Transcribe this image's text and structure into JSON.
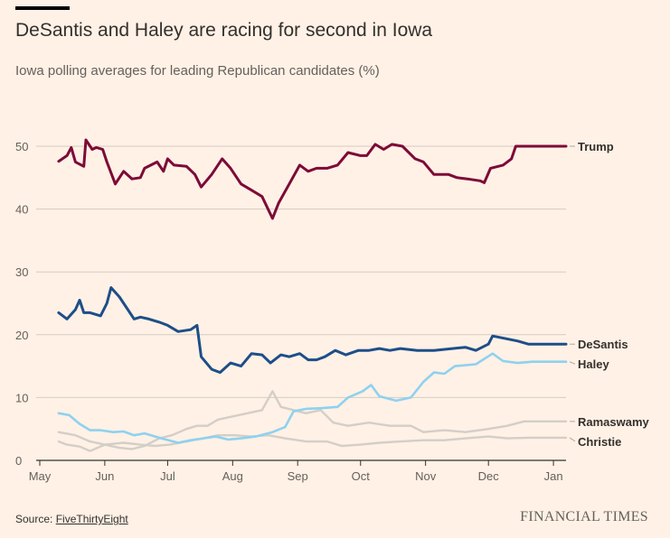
{
  "title": "DeSantis and Haley are racing for second in Iowa",
  "subtitle": "Iowa polling averages for leading Republican candidates (%)",
  "source_prefix": "Source: ",
  "source_link": "FiveThirtyEight",
  "brand": "FINANCIAL TIMES",
  "chart_data": {
    "type": "line",
    "title": "DeSantis and Haley are racing for second in Iowa",
    "subtitle": "Iowa polling averages for leading Republican candidates (%)",
    "xlabel": "",
    "ylabel": "",
    "ylim": [
      0,
      50
    ],
    "yticks": [
      0,
      10,
      20,
      30,
      40,
      50
    ],
    "x_ticks": [
      {
        "label": "May",
        "date": "2023-05-01"
      },
      {
        "label": "Jun",
        "date": "2023-06-01"
      },
      {
        "label": "Jul",
        "date": "2023-07-01"
      },
      {
        "label": "Aug",
        "date": "2023-08-01"
      },
      {
        "label": "Sep",
        "date": "2023-09-01"
      },
      {
        "label": "Oct",
        "date": "2023-10-01"
      },
      {
        "label": "Nov",
        "date": "2023-11-01"
      },
      {
        "label": "Dec",
        "date": "2023-12-01"
      },
      {
        "label": "Jan",
        "date": "2024-01-01"
      }
    ],
    "xlim": [
      "2023-05-01",
      "2024-01-07"
    ],
    "grid": "horizontal",
    "legend": "right-end labels",
    "series": [
      {
        "name": "Trump",
        "color": "#7D0A38",
        "width": 3,
        "label_value": 50,
        "points": [
          [
            "2023-05-10",
            47.6
          ],
          [
            "2023-05-14",
            48.5
          ],
          [
            "2023-05-16",
            49.8
          ],
          [
            "2023-05-18",
            47.5
          ],
          [
            "2023-05-22",
            46.8
          ],
          [
            "2023-05-23",
            51.0
          ],
          [
            "2023-05-26",
            49.5
          ],
          [
            "2023-05-28",
            49.8
          ],
          [
            "2023-05-31",
            49.5
          ],
          [
            "2023-06-02",
            47.5
          ],
          [
            "2023-06-06",
            44.0
          ],
          [
            "2023-06-10",
            46.0
          ],
          [
            "2023-06-14",
            44.8
          ],
          [
            "2023-06-18",
            45.0
          ],
          [
            "2023-06-20",
            46.5
          ],
          [
            "2023-06-26",
            47.5
          ],
          [
            "2023-06-29",
            46.0
          ],
          [
            "2023-07-01",
            48.0
          ],
          [
            "2023-07-04",
            47.0
          ],
          [
            "2023-07-10",
            46.8
          ],
          [
            "2023-07-14",
            45.5
          ],
          [
            "2023-07-17",
            43.5
          ],
          [
            "2023-07-22",
            45.5
          ],
          [
            "2023-07-27",
            48.0
          ],
          [
            "2023-07-31",
            46.5
          ],
          [
            "2023-08-05",
            44.0
          ],
          [
            "2023-08-10",
            43.0
          ],
          [
            "2023-08-15",
            42.0
          ],
          [
            "2023-08-20",
            38.5
          ],
          [
            "2023-08-23",
            41.0
          ],
          [
            "2023-08-28",
            44.0
          ],
          [
            "2023-09-02",
            47.0
          ],
          [
            "2023-09-06",
            46.0
          ],
          [
            "2023-09-10",
            46.5
          ],
          [
            "2023-09-15",
            46.5
          ],
          [
            "2023-09-20",
            47.0
          ],
          [
            "2023-09-25",
            49.0
          ],
          [
            "2023-10-01",
            48.5
          ],
          [
            "2023-10-04",
            48.5
          ],
          [
            "2023-10-08",
            50.3
          ],
          [
            "2023-10-12",
            49.5
          ],
          [
            "2023-10-16",
            50.3
          ],
          [
            "2023-10-21",
            50.0
          ],
          [
            "2023-10-27",
            48.0
          ],
          [
            "2023-10-31",
            47.5
          ],
          [
            "2023-11-05",
            45.5
          ],
          [
            "2023-11-12",
            45.5
          ],
          [
            "2023-11-16",
            45.0
          ],
          [
            "2023-11-21",
            44.8
          ],
          [
            "2023-11-27",
            44.5
          ],
          [
            "2023-11-29",
            44.2
          ],
          [
            "2023-12-02",
            46.5
          ],
          [
            "2023-12-08",
            47.0
          ],
          [
            "2023-12-12",
            48.0
          ],
          [
            "2023-12-14",
            50.0
          ],
          [
            "2023-12-20",
            50.0
          ],
          [
            "2024-01-07",
            50.0
          ]
        ]
      },
      {
        "name": "DeSantis",
        "color": "#1D4E89",
        "width": 3,
        "label_value": 18.5,
        "points": [
          [
            "2023-05-10",
            23.5
          ],
          [
            "2023-05-14",
            22.5
          ],
          [
            "2023-05-18",
            24.0
          ],
          [
            "2023-05-20",
            25.5
          ],
          [
            "2023-05-22",
            23.5
          ],
          [
            "2023-05-25",
            23.5
          ],
          [
            "2023-05-30",
            23.0
          ],
          [
            "2023-06-02",
            25.0
          ],
          [
            "2023-06-04",
            27.5
          ],
          [
            "2023-06-08",
            26.0
          ],
          [
            "2023-06-12",
            24.0
          ],
          [
            "2023-06-15",
            22.5
          ],
          [
            "2023-06-18",
            22.8
          ],
          [
            "2023-06-22",
            22.5
          ],
          [
            "2023-06-27",
            22.0
          ],
          [
            "2023-07-01",
            21.5
          ],
          [
            "2023-07-06",
            20.5
          ],
          [
            "2023-07-12",
            20.8
          ],
          [
            "2023-07-15",
            21.5
          ],
          [
            "2023-07-17",
            16.5
          ],
          [
            "2023-07-22",
            14.5
          ],
          [
            "2023-07-26",
            14.0
          ],
          [
            "2023-07-31",
            15.5
          ],
          [
            "2023-08-05",
            15.0
          ],
          [
            "2023-08-10",
            17.0
          ],
          [
            "2023-08-15",
            16.8
          ],
          [
            "2023-08-19",
            15.5
          ],
          [
            "2023-08-24",
            16.8
          ],
          [
            "2023-08-28",
            16.5
          ],
          [
            "2023-09-02",
            17.0
          ],
          [
            "2023-09-06",
            16.0
          ],
          [
            "2023-09-10",
            16.0
          ],
          [
            "2023-09-14",
            16.5
          ],
          [
            "2023-09-19",
            17.5
          ],
          [
            "2023-09-24",
            16.8
          ],
          [
            "2023-09-30",
            17.5
          ],
          [
            "2023-10-05",
            17.5
          ],
          [
            "2023-10-10",
            17.8
          ],
          [
            "2023-10-15",
            17.5
          ],
          [
            "2023-10-20",
            17.8
          ],
          [
            "2023-10-28",
            17.5
          ],
          [
            "2023-11-05",
            17.5
          ],
          [
            "2023-11-20",
            18.0
          ],
          [
            "2023-11-25",
            17.5
          ],
          [
            "2023-12-01",
            18.5
          ],
          [
            "2023-12-03",
            19.8
          ],
          [
            "2023-12-15",
            19.0
          ],
          [
            "2023-12-20",
            18.5
          ],
          [
            "2024-01-07",
            18.5
          ]
        ]
      },
      {
        "name": "Haley",
        "color": "#8ED1F0",
        "width": 2.6,
        "label_value": 15.7,
        "points": [
          [
            "2023-05-10",
            7.5
          ],
          [
            "2023-05-15",
            7.2
          ],
          [
            "2023-05-20",
            5.8
          ],
          [
            "2023-05-25",
            4.8
          ],
          [
            "2023-05-30",
            4.8
          ],
          [
            "2023-06-05",
            4.5
          ],
          [
            "2023-06-10",
            4.6
          ],
          [
            "2023-06-15",
            4.0
          ],
          [
            "2023-06-20",
            4.3
          ],
          [
            "2023-06-28",
            3.5
          ],
          [
            "2023-07-06",
            2.8
          ],
          [
            "2023-07-12",
            3.2
          ],
          [
            "2023-07-18",
            3.5
          ],
          [
            "2023-07-24",
            3.8
          ],
          [
            "2023-07-30",
            3.3
          ],
          [
            "2023-08-05",
            3.5
          ],
          [
            "2023-08-12",
            3.8
          ],
          [
            "2023-08-20",
            4.5
          ],
          [
            "2023-08-26",
            5.3
          ],
          [
            "2023-08-30",
            7.8
          ],
          [
            "2023-09-05",
            8.2
          ],
          [
            "2023-09-12",
            8.3
          ],
          [
            "2023-09-20",
            8.5
          ],
          [
            "2023-09-25",
            10.0
          ],
          [
            "2023-10-02",
            11.0
          ],
          [
            "2023-10-06",
            12.0
          ],
          [
            "2023-10-10",
            10.2
          ],
          [
            "2023-10-18",
            9.5
          ],
          [
            "2023-10-25",
            10.0
          ],
          [
            "2023-10-31",
            12.5
          ],
          [
            "2023-11-05",
            14.0
          ],
          [
            "2023-11-10",
            13.8
          ],
          [
            "2023-11-15",
            15.0
          ],
          [
            "2023-11-25",
            15.3
          ],
          [
            "2023-12-03",
            17.0
          ],
          [
            "2023-12-08",
            15.8
          ],
          [
            "2023-12-15",
            15.5
          ],
          [
            "2023-12-22",
            15.7
          ],
          [
            "2024-01-07",
            15.7
          ]
        ]
      },
      {
        "name": "Ramaswamy",
        "color": "#D4CEC8",
        "width": 2.4,
        "label_value": 6.2,
        "points": [
          [
            "2023-05-10",
            3.0
          ],
          [
            "2023-05-14",
            2.5
          ],
          [
            "2023-05-20",
            2.2
          ],
          [
            "2023-05-25",
            1.5
          ],
          [
            "2023-06-01",
            2.5
          ],
          [
            "2023-06-08",
            2.0
          ],
          [
            "2023-06-14",
            1.8
          ],
          [
            "2023-06-20",
            2.3
          ],
          [
            "2023-06-27",
            3.5
          ],
          [
            "2023-07-03",
            4.0
          ],
          [
            "2023-07-10",
            5.0
          ],
          [
            "2023-07-15",
            5.5
          ],
          [
            "2023-07-20",
            5.5
          ],
          [
            "2023-07-25",
            6.5
          ],
          [
            "2023-08-01",
            7.0
          ],
          [
            "2023-08-08",
            7.5
          ],
          [
            "2023-08-15",
            8.0
          ],
          [
            "2023-08-20",
            11.0
          ],
          [
            "2023-08-24",
            8.5
          ],
          [
            "2023-08-30",
            8.0
          ],
          [
            "2023-09-05",
            7.5
          ],
          [
            "2023-09-12",
            8.0
          ],
          [
            "2023-09-18",
            6.0
          ],
          [
            "2023-09-25",
            5.5
          ],
          [
            "2023-10-05",
            6.0
          ],
          [
            "2023-10-15",
            5.5
          ],
          [
            "2023-10-25",
            5.5
          ],
          [
            "2023-10-31",
            4.5
          ],
          [
            "2023-11-10",
            4.8
          ],
          [
            "2023-11-20",
            4.5
          ],
          [
            "2023-12-01",
            5.0
          ],
          [
            "2023-12-10",
            5.5
          ],
          [
            "2023-12-18",
            6.2
          ],
          [
            "2024-01-07",
            6.2
          ]
        ]
      },
      {
        "name": "Christie",
        "color": "#D4CEC8",
        "width": 2.4,
        "label_value": 3.6,
        "points": [
          [
            "2023-05-10",
            4.5
          ],
          [
            "2023-05-18",
            4.0
          ],
          [
            "2023-05-25",
            3.0
          ],
          [
            "2023-06-01",
            2.5
          ],
          [
            "2023-06-10",
            2.8
          ],
          [
            "2023-06-18",
            2.5
          ],
          [
            "2023-06-25",
            2.3
          ],
          [
            "2023-07-02",
            2.5
          ],
          [
            "2023-07-10",
            3.0
          ],
          [
            "2023-07-18",
            3.5
          ],
          [
            "2023-07-25",
            4.0
          ],
          [
            "2023-08-02",
            4.0
          ],
          [
            "2023-08-10",
            3.8
          ],
          [
            "2023-08-18",
            4.0
          ],
          [
            "2023-08-26",
            3.5
          ],
          [
            "2023-09-05",
            3.0
          ],
          [
            "2023-09-15",
            3.0
          ],
          [
            "2023-09-22",
            2.3
          ],
          [
            "2023-10-01",
            2.5
          ],
          [
            "2023-10-10",
            2.8
          ],
          [
            "2023-10-20",
            3.0
          ],
          [
            "2023-10-31",
            3.2
          ],
          [
            "2023-11-10",
            3.2
          ],
          [
            "2023-11-20",
            3.5
          ],
          [
            "2023-12-01",
            3.8
          ],
          [
            "2023-12-10",
            3.5
          ],
          [
            "2023-12-20",
            3.6
          ],
          [
            "2024-01-07",
            3.6
          ]
        ]
      }
    ]
  }
}
